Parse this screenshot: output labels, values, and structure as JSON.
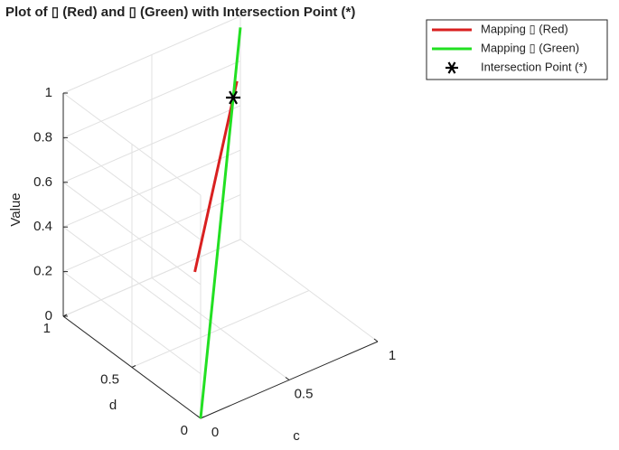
{
  "chart_data": {
    "type": "line3d",
    "title": "Plot of ▯ (Red) and ▯ (Green) with Intersection Point (*)",
    "xlabel": "c",
    "ylabel": "d",
    "zlabel": "Value",
    "xlim": [
      0,
      1
    ],
    "ylim": [
      0,
      1
    ],
    "zlim": [
      0,
      1
    ],
    "xticks": [
      0,
      0.5,
      1
    ],
    "yticks": [
      0,
      0.5,
      1
    ],
    "zticks": [
      0,
      0.2,
      0.4,
      0.6,
      0.8,
      1
    ],
    "grid": true,
    "legend": "northeastoutside",
    "series": [
      {
        "name": "Mapping ▯ (Red)",
        "color": "#d92020",
        "marker": "none",
        "x": [
          0.2,
          0.88
        ],
        "y": [
          0.3,
          0.87
        ],
        "z": [
          0.45,
          0.81
        ]
      },
      {
        "name": "Mapping ▯ (Green)",
        "color": "#22e022",
        "marker": "none",
        "x": [
          0,
          1
        ],
        "y": [
          0,
          1
        ],
        "z": [
          0,
          0.95
        ]
      },
      {
        "name": "Intersection Point (*)",
        "color": "#000000",
        "marker": "*",
        "x": [
          0.82
        ],
        "y": [
          0.82
        ],
        "z": [
          0.78
        ]
      }
    ]
  }
}
